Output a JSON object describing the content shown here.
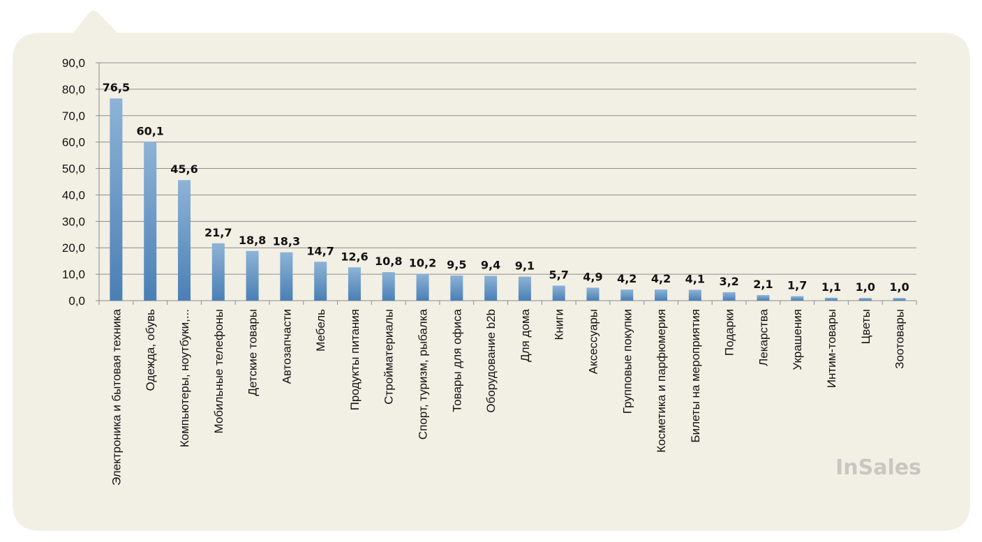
{
  "chart_data": {
    "type": "bar",
    "title": "",
    "xlabel": "",
    "ylabel": "",
    "ylim": [
      0,
      90
    ],
    "y_ticks": [
      "0,0",
      "10,0",
      "20,0",
      "30,0",
      "40,0",
      "50,0",
      "60,0",
      "70,0",
      "80,0",
      "90,0"
    ],
    "grid": true,
    "legend": "none",
    "categories": [
      "Электроника и бытовая техника",
      "Одежда, обувь",
      "Компьютеры, ноутбуки,...",
      "Мобильные телефоны",
      "Детские товары",
      "Автозапчасти",
      "Мебель",
      "Продукты питания",
      "Стройматериалы",
      "Спорт, туризм, рыбалка",
      "Товары для офиса",
      "Оборудование b2b",
      "Для дома",
      "Книги",
      "Аксессуары",
      "Групповые покупки",
      "Косметика и парфюмерия",
      "Билеты на мероприятия",
      "Подарки",
      "Лекарства",
      "Украшения",
      "Интим-товары",
      "Цветы",
      "Зоотовары"
    ],
    "values": [
      76.5,
      60.1,
      45.6,
      21.7,
      18.8,
      18.3,
      14.7,
      12.6,
      10.8,
      10.2,
      9.5,
      9.4,
      9.1,
      5.7,
      4.9,
      4.2,
      4.2,
      4.1,
      3.2,
      2.1,
      1.7,
      1.1,
      1.0,
      1.0
    ],
    "value_labels": [
      "76,5",
      "60,1",
      "45,6",
      "21,7",
      "18,8",
      "18,3",
      "14,7",
      "12,6",
      "10,8",
      "10,2",
      "9,5",
      "9,4",
      "9,1",
      "5,7",
      "4,9",
      "4,2",
      "4,2",
      "4,1",
      "3,2",
      "2,1",
      "1,7",
      "1,1",
      "1,0",
      "1,0"
    ],
    "colors": {
      "panel": "#f2efe4",
      "bar_top": "#8db3d6",
      "bar_bottom": "#4a7fb5",
      "grid": "#8c8c8c",
      "axis": "#8c8c8c"
    }
  },
  "branding": {
    "logo_text": "InSales"
  }
}
